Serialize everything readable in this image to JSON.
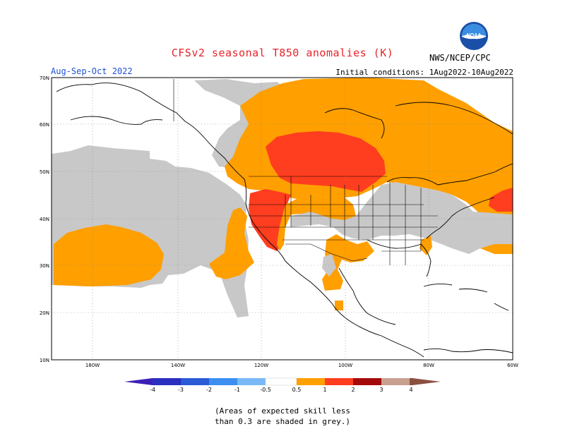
{
  "header": {
    "title": "CFSv2 seasonal T850 anomalies (K)",
    "season": "Aug-Sep-Oct 2022",
    "initial_conditions": "Initial conditions: 1Aug2022-10Aug2022",
    "agency": "NWS/NCEP/CPC",
    "logo_text": "NOAA"
  },
  "map": {
    "lat_labels": [
      "70N",
      "60N",
      "50N",
      "40N",
      "30N",
      "20N",
      "10N"
    ],
    "lon_labels": [
      "180W",
      "140W",
      "120W",
      "100W",
      "80W",
      "60W"
    ],
    "colors": {
      "skill_grey": "#c8c8c8",
      "orange": "#ff9f00",
      "red": "#ff3d1f",
      "white": "#ffffff"
    }
  },
  "legend": {
    "labels": [
      "-4",
      "-3",
      "-2",
      "-1",
      "-0.5",
      "0.5",
      "1",
      "2",
      "3",
      "4"
    ],
    "colors": [
      "#3c1fb5",
      "#2a5ad6",
      "#3c8ff0",
      "#79b9f7",
      "#a6d2f8",
      "#ffffff",
      "#ff9f00",
      "#ff3d1f",
      "#a50a0a",
      "#c8a090",
      "#8a5040"
    ]
  },
  "footnote": {
    "line1": "(Areas of expected skill less",
    "line2": "than 0.3 are shaded in grey.)"
  }
}
